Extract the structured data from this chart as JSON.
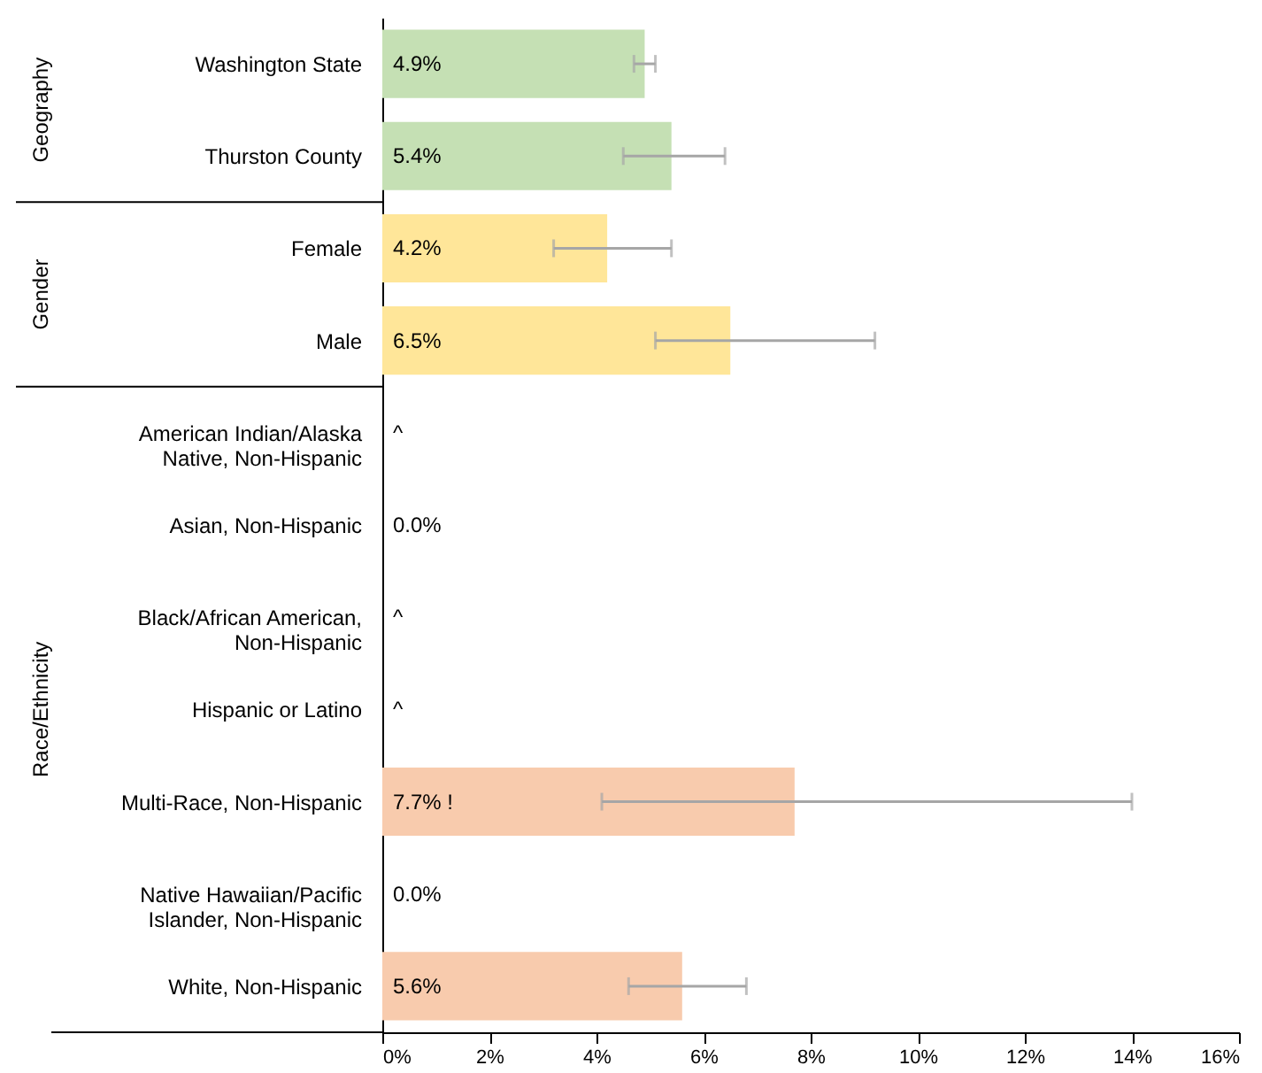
{
  "chart_data": {
    "type": "bar",
    "orientation": "horizontal",
    "categories": [
      "Washington State",
      "Thurston County",
      "Female",
      "Male",
      "American Indian/Alaska Native, Non-Hispanic",
      "Asian, Non-Hispanic",
      "Black/African American, Non-Hispanic",
      "Hispanic or Latino",
      "Multi-Race, Non-Hispanic",
      "Native Hawaiian/Pacific Islander, Non-Hispanic",
      "White, Non-Hispanic"
    ],
    "values": [
      4.9,
      5.4,
      4.2,
      6.5,
      null,
      0.0,
      null,
      null,
      7.7,
      0.0,
      5.6
    ],
    "value_labels": [
      "4.9%",
      "5.4%",
      "4.2%",
      "6.5%",
      "^",
      "0.0%",
      "^",
      "^",
      "7.7% !",
      "0.0%",
      "5.6%"
    ],
    "errors": [
      [
        4.7,
        5.1
      ],
      [
        4.5,
        6.4
      ],
      [
        3.2,
        5.4
      ],
      [
        5.1,
        9.2
      ],
      null,
      null,
      null,
      null,
      [
        4.1,
        14.0
      ],
      null,
      [
        4.6,
        6.8
      ]
    ],
    "colors": [
      "#c5e0b4",
      "#c5e0b4",
      "#ffe699",
      "#ffe699",
      "#f8cbad",
      "#f8cbad",
      "#f8cbad",
      "#f8cbad",
      "#f8cbad",
      "#f8cbad",
      "#f8cbad"
    ],
    "annotations": [
      "Geography",
      "Gender",
      "Race/Ethnicity"
    ],
    "xlim": [
      0,
      16
    ],
    "xticks": [
      {
        "value": 0,
        "label": "0%"
      },
      {
        "value": 2,
        "label": "2%"
      },
      {
        "value": 4,
        "label": "4%"
      },
      {
        "value": 6,
        "label": "6%"
      },
      {
        "value": 8,
        "label": "8%"
      },
      {
        "value": 10,
        "label": "10%"
      },
      {
        "value": 12,
        "label": "12%"
      },
      {
        "value": 14,
        "label": "14%"
      },
      {
        "value": 16,
        "label": "16%"
      }
    ],
    "grid": false,
    "legend": false
  }
}
